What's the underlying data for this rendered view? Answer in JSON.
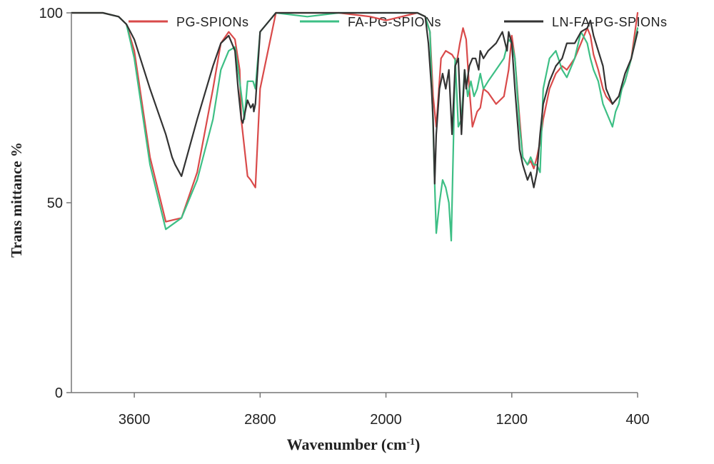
{
  "chart_data": {
    "type": "line",
    "title": "",
    "xlabel": "Wavenumber (cm-1)",
    "xlabel_main": "Wavenumber  (cm",
    "xlabel_sup": "-1",
    "xlabel_close": ")",
    "ylabel": "Trans mittance  %",
    "xlim": [
      4000,
      400
    ],
    "ylim": [
      0,
      100
    ],
    "xticks": [
      3600,
      2800,
      2000,
      1200,
      400
    ],
    "xtick_labels": [
      "3600",
      "2800",
      "2000",
      "1200",
      "400"
    ],
    "yticks": [
      0,
      50,
      100
    ],
    "ytick_labels": [
      "0",
      "50",
      "100"
    ],
    "grid": false,
    "legend_position": "top",
    "series": [
      {
        "name": "PG-SPIONs",
        "color": "#d94a4a",
        "x": [
          4000,
          3800,
          3700,
          3650,
          3600,
          3500,
          3400,
          3300,
          3200,
          3100,
          3050,
          3000,
          2960,
          2930,
          2920,
          2880,
          2860,
          2845,
          2830,
          2800,
          2700,
          2500,
          2300,
          2100,
          2000,
          1900,
          1800,
          1750,
          1720,
          1700,
          1680,
          1650,
          1620,
          1580,
          1550,
          1530,
          1510,
          1490,
          1470,
          1450,
          1420,
          1400,
          1380,
          1350,
          1300,
          1250,
          1220,
          1200,
          1180,
          1150,
          1130,
          1100,
          1080,
          1060,
          1040,
          1020,
          1000,
          960,
          920,
          880,
          850,
          800,
          760,
          720,
          700,
          680,
          650,
          620,
          600,
          560,
          520,
          480,
          440,
          400
        ],
        "y": [
          100,
          100,
          99,
          97,
          90,
          62,
          45,
          46,
          58,
          80,
          92,
          95,
          93,
          85,
          72,
          57,
          56,
          55,
          54,
          80,
          100,
          100,
          100,
          99,
          98,
          99,
          100,
          99,
          95,
          78,
          70,
          88,
          90,
          89,
          87,
          92,
          96,
          93,
          80,
          70,
          74,
          75,
          80,
          79,
          76,
          78,
          85,
          94,
          88,
          72,
          62,
          60,
          61,
          59,
          62,
          66,
          72,
          80,
          84,
          86,
          85,
          88,
          92,
          96,
          94,
          89,
          85,
          80,
          78,
          76,
          78,
          82,
          88,
          100
        ]
      },
      {
        "name": "FA-PG-SPIONs",
        "color": "#3dbf85",
        "x": [
          4000,
          3800,
          3700,
          3650,
          3600,
          3500,
          3400,
          3300,
          3200,
          3100,
          3050,
          3000,
          2960,
          2930,
          2900,
          2880,
          2860,
          2845,
          2830,
          2800,
          2700,
          2500,
          2300,
          2100,
          2000,
          1900,
          1800,
          1750,
          1720,
          1700,
          1690,
          1680,
          1660,
          1640,
          1620,
          1600,
          1585,
          1570,
          1560,
          1540,
          1520,
          1500,
          1480,
          1460,
          1440,
          1420,
          1400,
          1380,
          1350,
          1300,
          1250,
          1220,
          1200,
          1180,
          1150,
          1130,
          1100,
          1080,
          1060,
          1040,
          1020,
          1000,
          960,
          920,
          880,
          850,
          800,
          760,
          720,
          700,
          680,
          650,
          620,
          600,
          560,
          540,
          520,
          500,
          480,
          440,
          400
        ],
        "y": [
          100,
          100,
          99,
          97,
          88,
          60,
          43,
          46,
          56,
          72,
          85,
          90,
          91,
          82,
          72,
          82,
          82,
          82,
          80,
          95,
          100,
          99,
          100,
          100,
          100,
          100,
          100,
          99,
          95,
          70,
          55,
          42,
          50,
          56,
          54,
          50,
          40,
          68,
          88,
          70,
          72,
          85,
          78,
          82,
          78,
          80,
          84,
          80,
          82,
          85,
          88,
          93,
          92,
          88,
          70,
          62,
          60,
          62,
          60,
          60,
          58,
          80,
          88,
          90,
          85,
          83,
          88,
          95,
          92,
          88,
          85,
          82,
          76,
          74,
          70,
          74,
          76,
          80,
          82,
          88,
          96
        ]
      },
      {
        "name": "LN-FA-PG-SPIONs",
        "color": "#333333",
        "x": [
          4000,
          3800,
          3700,
          3650,
          3600,
          3500,
          3400,
          3360,
          3340,
          3300,
          3200,
          3100,
          3050,
          3000,
          2960,
          2940,
          2920,
          2910,
          2880,
          2860,
          2845,
          2840,
          2830,
          2800,
          2700,
          2500,
          2300,
          2100,
          2000,
          1900,
          1800,
          1750,
          1730,
          1710,
          1700,
          1690,
          1680,
          1660,
          1640,
          1620,
          1600,
          1580,
          1560,
          1540,
          1520,
          1500,
          1490,
          1470,
          1450,
          1430,
          1410,
          1400,
          1380,
          1350,
          1300,
          1260,
          1230,
          1220,
          1200,
          1180,
          1150,
          1130,
          1100,
          1080,
          1060,
          1040,
          1020,
          1000,
          960,
          920,
          880,
          850,
          800,
          760,
          720,
          700,
          680,
          650,
          620,
          600,
          580,
          560,
          520,
          480,
          440,
          400
        ],
        "y": [
          100,
          100,
          99,
          97,
          93,
          80,
          68,
          62,
          60,
          57,
          72,
          86,
          92,
          94,
          90,
          80,
          72,
          71,
          77,
          75,
          76,
          74,
          76,
          95,
          100,
          100,
          100,
          100,
          100,
          100,
          100,
          99,
          92,
          80,
          72,
          55,
          68,
          80,
          84,
          80,
          85,
          68,
          86,
          88,
          68,
          85,
          80,
          86,
          88,
          88,
          85,
          90,
          88,
          90,
          92,
          95,
          90,
          95,
          92,
          80,
          64,
          60,
          56,
          58,
          54,
          58,
          68,
          76,
          82,
          86,
          88,
          92,
          92,
          95,
          96,
          98,
          94,
          90,
          86,
          80,
          78,
          76,
          78,
          84,
          88,
          95
        ]
      }
    ]
  }
}
